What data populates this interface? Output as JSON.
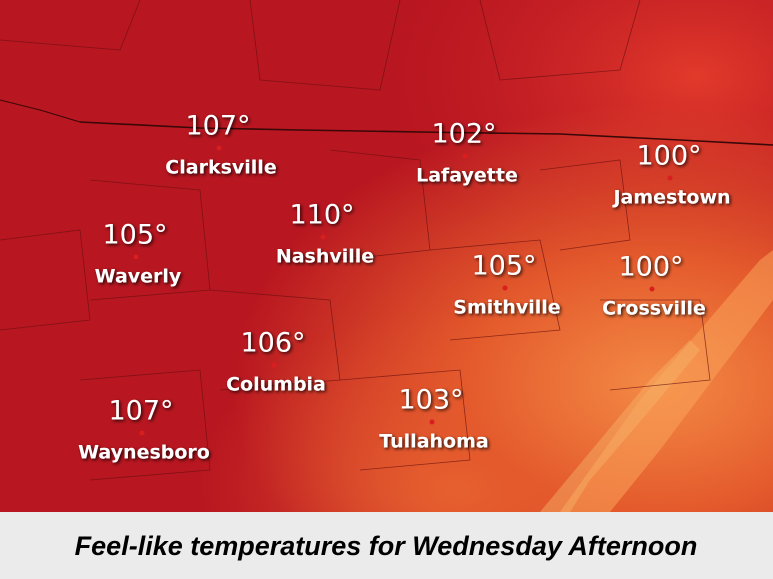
{
  "map": {
    "cities": [
      {
        "name": "Clarksville",
        "temp": "107°"
      },
      {
        "name": "Lafayette",
        "temp": "102°"
      },
      {
        "name": "Jamestown",
        "temp": "100°"
      },
      {
        "name": "Waverly",
        "temp": "105°"
      },
      {
        "name": "Nashville",
        "temp": "110°"
      },
      {
        "name": "Smithville",
        "temp": "105°"
      },
      {
        "name": "Crossville",
        "temp": "100°"
      },
      {
        "name": "Columbia",
        "temp": "106°"
      },
      {
        "name": "Waynesboro",
        "temp": "107°"
      },
      {
        "name": "Tullahoma",
        "temp": "103°"
      }
    ]
  },
  "caption": "Feel-like temperatures for Wednesday Afternoon"
}
